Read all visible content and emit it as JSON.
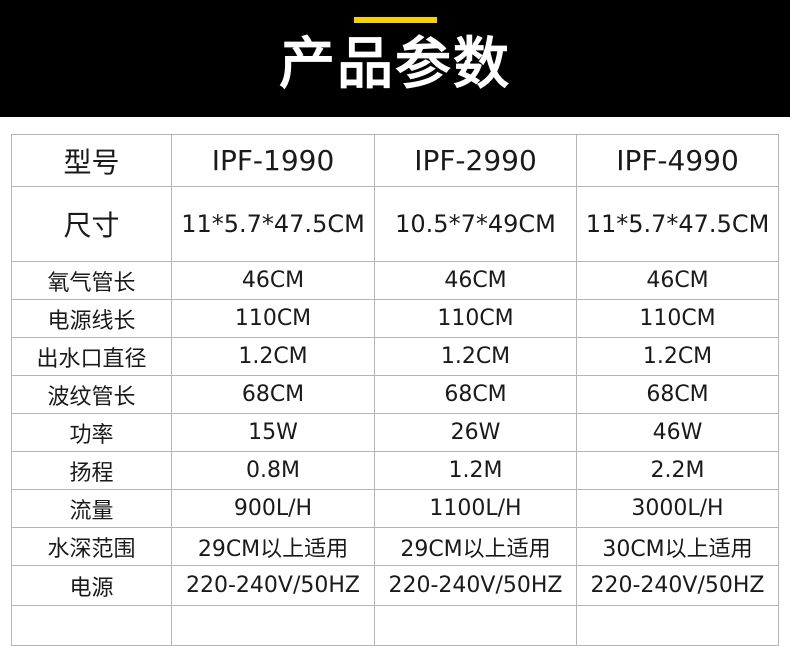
{
  "header": {
    "title": "产品参数",
    "accent_color": "#f5d300"
  },
  "table": {
    "header_row": {
      "label": "型号",
      "models": [
        "IPF-1990",
        "IPF-2990",
        "IPF-4990"
      ]
    },
    "rows": [
      {
        "label": "尺寸",
        "values": [
          "11*5.7*47.5CM",
          "10.5*7*49CM",
          "11*5.7*47.5CM"
        ]
      },
      {
        "label": "氧气管长",
        "values": [
          "46CM",
          "46CM",
          "46CM"
        ]
      },
      {
        "label": "电源线长",
        "values": [
          "110CM",
          "110CM",
          "110CM"
        ]
      },
      {
        "label": "出水口直径",
        "values": [
          "1.2CM",
          "1.2CM",
          "1.2CM"
        ]
      },
      {
        "label": "波纹管长",
        "values": [
          "68CM",
          "68CM",
          "68CM"
        ]
      },
      {
        "label": "功率",
        "values": [
          "15W",
          "26W",
          "46W"
        ]
      },
      {
        "label": "扬程",
        "values": [
          "0.8M",
          "1.2M",
          "2.2M"
        ]
      },
      {
        "label": "流量",
        "values": [
          "900L/H",
          "1100L/H",
          "3000L/H"
        ]
      },
      {
        "label": "水深范围",
        "values": [
          "29CM以上适用",
          "29CM以上适用",
          "30CM以上适用"
        ]
      },
      {
        "label": "电源",
        "values": [
          "220-240V/50HZ",
          "220-240V/50HZ",
          "220-240V/50HZ"
        ]
      }
    ]
  }
}
